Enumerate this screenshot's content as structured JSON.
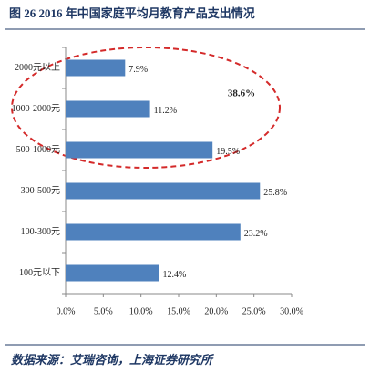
{
  "chart_data": {
    "type": "hbar",
    "title": "图 26 2016 年中国家庭平均月教育产品支出情况",
    "categories": [
      "2000元以上",
      "1000-2000元",
      "500-1000元",
      "300-500元",
      "100-300元",
      "100元以下"
    ],
    "values": [
      7.9,
      11.2,
      19.5,
      25.8,
      23.2,
      12.4
    ],
    "value_labels": [
      "7.9%",
      "11.2%",
      "19.5%",
      "25.8%",
      "23.2%",
      "12.4%"
    ],
    "color": "#4f81bd",
    "xlim": [
      0,
      30
    ],
    "xticks": [
      {
        "value": 0,
        "label": "0.0%"
      },
      {
        "value": 5,
        "label": "5.0%"
      },
      {
        "value": 10,
        "label": "10.0%"
      },
      {
        "value": 15,
        "label": "15.0%"
      },
      {
        "value": 20,
        "label": "20.0%"
      },
      {
        "value": 25,
        "label": "25.0%"
      },
      {
        "value": 30,
        "label": "30.0%"
      }
    ],
    "annotation": "38.6%",
    "source": "数据来源：艾瑞咨询，上海证券研究所"
  }
}
